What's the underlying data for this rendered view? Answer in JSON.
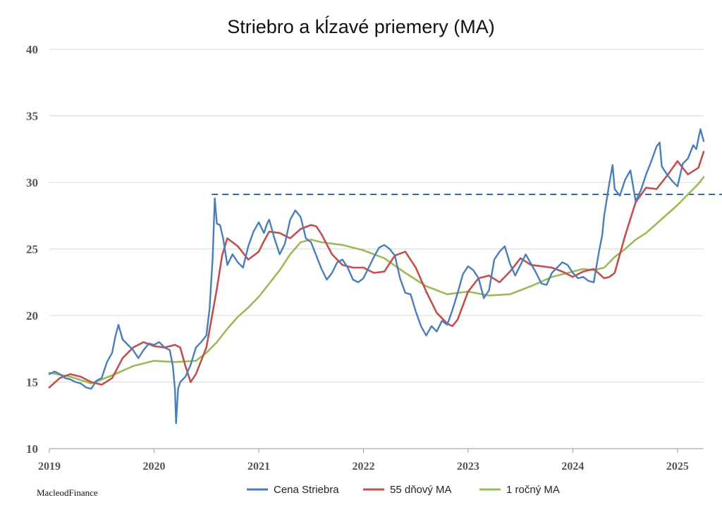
{
  "chart_data": {
    "type": "line",
    "title": "Striebro a kĺzavé priemery (MA)",
    "source": "MacleodFinance",
    "xlabel": "",
    "ylabel": "",
    "xlim": [
      2019.0,
      2025.25
    ],
    "ylim": [
      10,
      40
    ],
    "y_ticks": [
      "10",
      "15",
      "20",
      "25",
      "30",
      "35",
      "40"
    ],
    "x_ticks": [
      "2019",
      "2020",
      "2021",
      "2022",
      "2023",
      "2024",
      "2025"
    ],
    "grid": "horizontal",
    "legend_position": "bottom",
    "reference_line": {
      "y": 29.1,
      "x_start": 2020.55,
      "style": "dashed",
      "color": "#2e6bb3"
    },
    "series": [
      {
        "name": "Cena Striebra",
        "color": "#4a7ebb",
        "x": [
          2019.0,
          2019.05,
          2019.1,
          2019.15,
          2019.2,
          2019.25,
          2019.3,
          2019.35,
          2019.4,
          2019.45,
          2019.5,
          2019.55,
          2019.6,
          2019.63,
          2019.66,
          2019.7,
          2019.75,
          2019.8,
          2019.85,
          2019.9,
          2019.95,
          2020.0,
          2020.05,
          2020.1,
          2020.15,
          2020.18,
          2020.2,
          2020.21,
          2020.23,
          2020.25,
          2020.3,
          2020.35,
          2020.4,
          2020.45,
          2020.5,
          2020.53,
          2020.56,
          2020.58,
          2020.6,
          2020.63,
          2020.66,
          2020.7,
          2020.75,
          2020.8,
          2020.85,
          2020.9,
          2020.95,
          2021.0,
          2021.05,
          2021.08,
          2021.1,
          2021.15,
          2021.2,
          2021.25,
          2021.3,
          2021.35,
          2021.4,
          2021.45,
          2021.5,
          2021.55,
          2021.6,
          2021.65,
          2021.7,
          2021.75,
          2021.8,
          2021.85,
          2021.9,
          2021.95,
          2022.0,
          2022.05,
          2022.1,
          2022.15,
          2022.2,
          2022.25,
          2022.3,
          2022.35,
          2022.4,
          2022.45,
          2022.5,
          2022.55,
          2022.6,
          2022.65,
          2022.7,
          2022.75,
          2022.8,
          2022.85,
          2022.9,
          2022.95,
          2023.0,
          2023.05,
          2023.1,
          2023.15,
          2023.2,
          2023.25,
          2023.3,
          2023.35,
          2023.4,
          2023.45,
          2023.5,
          2023.55,
          2023.6,
          2023.65,
          2023.7,
          2023.75,
          2023.8,
          2023.85,
          2023.9,
          2023.95,
          2024.0,
          2024.05,
          2024.1,
          2024.15,
          2024.2,
          2024.25,
          2024.28,
          2024.3,
          2024.35,
          2024.38,
          2024.4,
          2024.45,
          2024.5,
          2024.55,
          2024.6,
          2024.65,
          2024.7,
          2024.75,
          2024.8,
          2024.83,
          2024.85,
          2024.9,
          2024.95,
          2025.0,
          2025.05,
          2025.1,
          2025.15,
          2025.18,
          2025.2,
          2025.22,
          2025.25
        ],
        "values": [
          15.6,
          15.8,
          15.6,
          15.3,
          15.2,
          15.0,
          14.9,
          14.6,
          14.5,
          15.1,
          15.3,
          16.5,
          17.2,
          18.4,
          19.3,
          18.2,
          17.8,
          17.4,
          16.8,
          17.4,
          17.9,
          17.8,
          18.0,
          17.6,
          17.4,
          16.2,
          14.4,
          11.9,
          14.5,
          15.0,
          15.4,
          16.3,
          17.6,
          18.0,
          18.5,
          20.5,
          24.3,
          28.8,
          26.9,
          26.8,
          25.8,
          23.8,
          24.6,
          24.0,
          23.6,
          25.2,
          26.3,
          27.0,
          26.2,
          26.9,
          27.2,
          25.8,
          24.6,
          25.4,
          27.2,
          27.9,
          27.4,
          25.8,
          25.5,
          24.5,
          23.5,
          22.7,
          23.2,
          24.0,
          24.2,
          23.6,
          22.7,
          22.5,
          22.8,
          23.6,
          24.4,
          25.1,
          25.3,
          25.0,
          24.5,
          22.8,
          21.7,
          21.6,
          20.3,
          19.2,
          18.5,
          19.2,
          18.8,
          19.6,
          19.3,
          20.4,
          21.7,
          23.1,
          23.7,
          23.4,
          22.8,
          21.3,
          21.9,
          24.2,
          24.8,
          25.2,
          23.9,
          23.0,
          23.8,
          24.6,
          23.9,
          23.2,
          22.4,
          22.3,
          23.2,
          23.6,
          24.0,
          23.8,
          23.2,
          22.8,
          22.9,
          22.6,
          22.5,
          24.8,
          26.0,
          27.5,
          30.0,
          31.3,
          29.5,
          29.0,
          30.2,
          30.9,
          28.6,
          29.4,
          30.6,
          31.6,
          32.7,
          33.0,
          31.2,
          30.6,
          30.1,
          29.7,
          31.4,
          31.8,
          32.8,
          32.5,
          33.3,
          34.0,
          33.1
        ]
      },
      {
        "name": "55 dňový MA",
        "color": "#c0504d",
        "x": [
          2019.0,
          2019.1,
          2019.2,
          2019.3,
          2019.4,
          2019.5,
          2019.6,
          2019.7,
          2019.8,
          2019.9,
          2020.0,
          2020.1,
          2020.15,
          2020.2,
          2020.25,
          2020.3,
          2020.35,
          2020.4,
          2020.5,
          2020.6,
          2020.65,
          2020.7,
          2020.8,
          2020.9,
          2021.0,
          2021.05,
          2021.1,
          2021.2,
          2021.3,
          2021.4,
          2021.5,
          2021.55,
          2021.6,
          2021.7,
          2021.8,
          2021.9,
          2022.0,
          2022.1,
          2022.2,
          2022.3,
          2022.4,
          2022.5,
          2022.6,
          2022.7,
          2022.8,
          2022.85,
          2022.9,
          2023.0,
          2023.1,
          2023.2,
          2023.3,
          2023.4,
          2023.5,
          2023.6,
          2023.7,
          2023.8,
          2023.9,
          2024.0,
          2024.1,
          2024.2,
          2024.3,
          2024.35,
          2024.4,
          2024.5,
          2024.6,
          2024.7,
          2024.8,
          2024.9,
          2025.0,
          2025.1,
          2025.2,
          2025.25
        ],
        "values": [
          14.6,
          15.3,
          15.6,
          15.4,
          15.0,
          14.8,
          15.3,
          16.8,
          17.6,
          18.0,
          17.7,
          17.6,
          17.7,
          17.8,
          17.6,
          16.2,
          15.0,
          15.6,
          17.6,
          22.0,
          24.5,
          25.8,
          25.2,
          24.2,
          24.8,
          25.6,
          26.3,
          26.2,
          25.8,
          26.5,
          26.8,
          26.7,
          26.1,
          24.6,
          23.8,
          23.6,
          23.6,
          23.2,
          23.3,
          24.5,
          24.8,
          23.6,
          21.8,
          20.2,
          19.4,
          19.2,
          19.7,
          21.8,
          22.8,
          23.0,
          22.5,
          23.3,
          24.3,
          23.8,
          23.7,
          23.6,
          23.3,
          22.9,
          23.3,
          23.5,
          22.8,
          22.9,
          23.2,
          26.0,
          28.5,
          29.6,
          29.5,
          30.5,
          31.6,
          30.6,
          31.1,
          32.3
        ]
      },
      {
        "name": "1 ročný MA",
        "color": "#9bbb59",
        "x": [
          2019.0,
          2019.2,
          2019.4,
          2019.6,
          2019.8,
          2020.0,
          2020.2,
          2020.4,
          2020.5,
          2020.6,
          2020.7,
          2020.8,
          2020.9,
          2021.0,
          2021.1,
          2021.2,
          2021.3,
          2021.4,
          2021.5,
          2021.6,
          2021.8,
          2022.0,
          2022.2,
          2022.4,
          2022.6,
          2022.8,
          2023.0,
          2023.2,
          2023.4,
          2023.6,
          2023.8,
          2024.0,
          2024.1,
          2024.2,
          2024.3,
          2024.4,
          2024.5,
          2024.6,
          2024.7,
          2024.8,
          2024.9,
          2025.0,
          2025.1,
          2025.2,
          2025.25
        ],
        "values": [
          15.7,
          15.4,
          14.9,
          15.5,
          16.2,
          16.6,
          16.5,
          16.6,
          17.2,
          18.0,
          19.0,
          19.9,
          20.6,
          21.4,
          22.4,
          23.4,
          24.6,
          25.5,
          25.7,
          25.5,
          25.3,
          24.9,
          24.3,
          23.2,
          22.2,
          21.6,
          21.8,
          21.5,
          21.6,
          22.2,
          22.9,
          23.3,
          23.5,
          23.4,
          23.6,
          24.4,
          25.0,
          25.7,
          26.2,
          26.9,
          27.6,
          28.3,
          29.1,
          29.9,
          30.4
        ]
      }
    ]
  }
}
